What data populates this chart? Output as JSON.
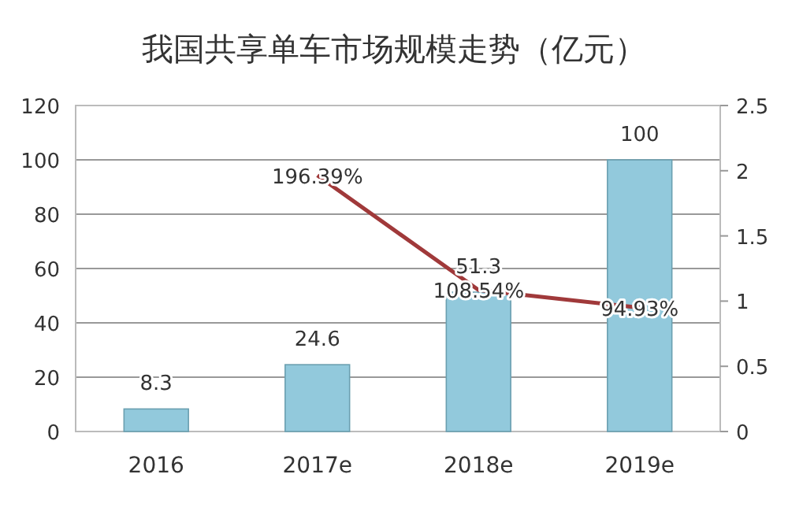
{
  "chart_data": {
    "type": "bar",
    "title": "我国共享单车市场规模走势（亿元）",
    "categories": [
      "2016",
      "2017e",
      "2018e",
      "2019e"
    ],
    "series": [
      {
        "color": "#92c9dc",
        "values": [
          8.3,
          24.6,
          51.3,
          100
        ],
        "data_labels": true
      },
      {
        "type": "line",
        "axis": "y2",
        "color": "#a0393a",
        "values": [
          null,
          1.9639,
          1.0854,
          0.9493
        ],
        "value_labels": [
          null,
          "196.39%",
          "108.54%",
          "94.93%"
        ]
      }
    ],
    "ylim": [
      0,
      120
    ],
    "yticks": [
      0,
      20,
      40,
      60,
      80,
      100,
      120
    ],
    "y2lim": [
      0,
      2.5
    ],
    "y2ticks": [
      0,
      0.5,
      1,
      1.5,
      2,
      2.5
    ],
    "grid": "y",
    "marker": "none",
    "line_style": "solid"
  }
}
